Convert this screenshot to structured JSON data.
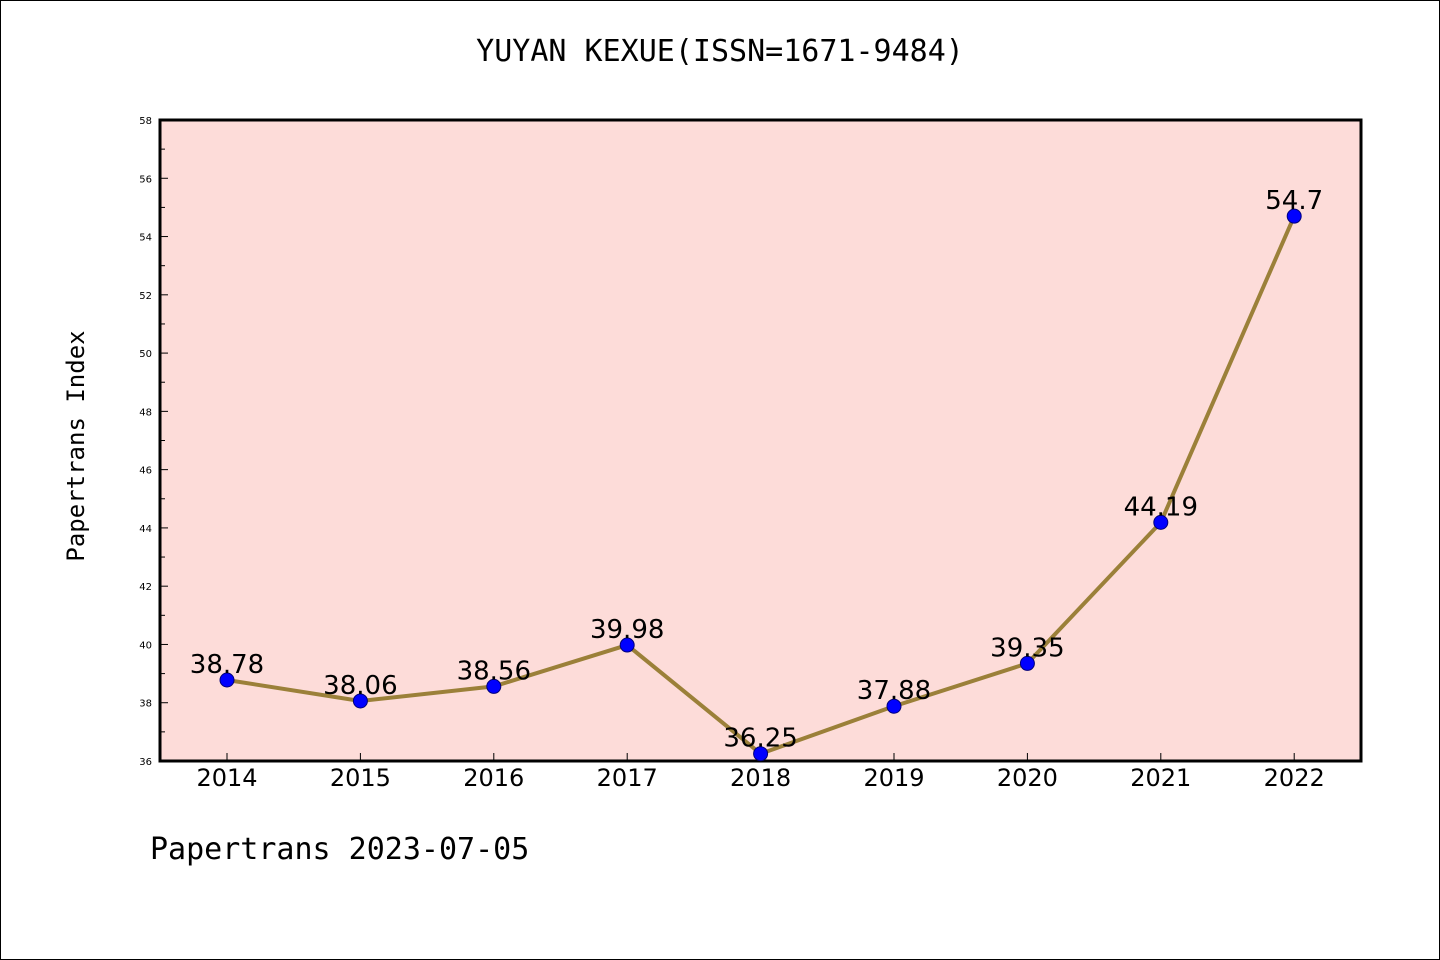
{
  "header": {
    "title": "YUYAN KEXUE(ISSN=1671-9484)"
  },
  "footer": {
    "text": "Papertrans 2023-07-05"
  },
  "chart_data": {
    "type": "line",
    "title": "YUYAN KEXUE(ISSN=1671-9484)",
    "xlabel": "",
    "ylabel": "Papertrans Index",
    "categories": [
      "2014",
      "2015",
      "2016",
      "2017",
      "2018",
      "2019",
      "2020",
      "2021",
      "2022"
    ],
    "series": [
      {
        "values": [
          38.78,
          38.06,
          38.56,
          39.98,
          36.25,
          37.88,
          39.35,
          44.19,
          54.7
        ],
        "labels": [
          "38.78",
          "38.06",
          "38.56",
          "39.98",
          "36.25",
          "37.88",
          "39.35",
          "44.19",
          "54.7"
        ]
      }
    ],
    "ylim": [
      36,
      58
    ],
    "yticks": [
      "36",
      "38",
      "40",
      "42",
      "44",
      "46",
      "48",
      "50",
      "52",
      "54",
      "56",
      "58"
    ],
    "grid": false,
    "legend": "none",
    "colors": {
      "plot_background": "#fddcd9",
      "line": "#9b8039",
      "marker": "#0000ff",
      "marker_edge": "#00007a"
    }
  }
}
